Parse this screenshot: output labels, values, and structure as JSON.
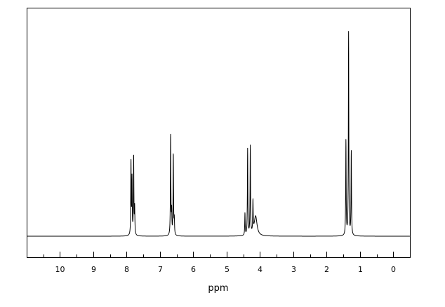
{
  "chart_data": {
    "type": "line",
    "title": "",
    "xlabel": "ppm",
    "ylabel": "",
    "x_axis_reversed": true,
    "xlim": [
      -0.5,
      11.0
    ],
    "ylim": [
      -0.02,
      1.0
    ],
    "ticks": {
      "major": [
        10,
        9,
        8,
        7,
        6,
        5,
        4,
        3,
        2,
        1,
        0
      ],
      "labels": [
        "10",
        "9",
        "8",
        "7",
        "6",
        "5",
        "4",
        "3",
        "2",
        "1",
        "0"
      ],
      "minor_step": 0.5
    },
    "grid": false,
    "legend": "none",
    "line_color": "#000000",
    "series": [
      {
        "peaks": [
          {
            "ppm": 7.87,
            "height": 0.33,
            "width": 0.008
          },
          {
            "ppm": 7.84,
            "height": 0.25,
            "width": 0.008
          },
          {
            "ppm": 7.79,
            "height": 0.36,
            "width": 0.008
          },
          {
            "ppm": 7.76,
            "height": 0.12,
            "width": 0.008
          },
          {
            "ppm": 6.68,
            "height": 0.46,
            "width": 0.008
          },
          {
            "ppm": 6.65,
            "height": 0.1,
            "width": 0.008
          },
          {
            "ppm": 6.6,
            "height": 0.37,
            "width": 0.008
          },
          {
            "ppm": 6.57,
            "height": 0.07,
            "width": 0.008
          },
          {
            "ppm": 4.45,
            "height": 0.1,
            "width": 0.008
          },
          {
            "ppm": 4.37,
            "height": 0.39,
            "width": 0.008
          },
          {
            "ppm": 4.29,
            "height": 0.4,
            "width": 0.008
          },
          {
            "ppm": 4.21,
            "height": 0.14,
            "width": 0.008
          },
          {
            "ppm": 4.13,
            "height": 0.09,
            "width": 0.05
          },
          {
            "ppm": 1.42,
            "height": 0.43,
            "width": 0.008
          },
          {
            "ppm": 1.34,
            "height": 0.92,
            "width": 0.008
          },
          {
            "ppm": 1.26,
            "height": 0.38,
            "width": 0.008
          }
        ]
      }
    ]
  }
}
